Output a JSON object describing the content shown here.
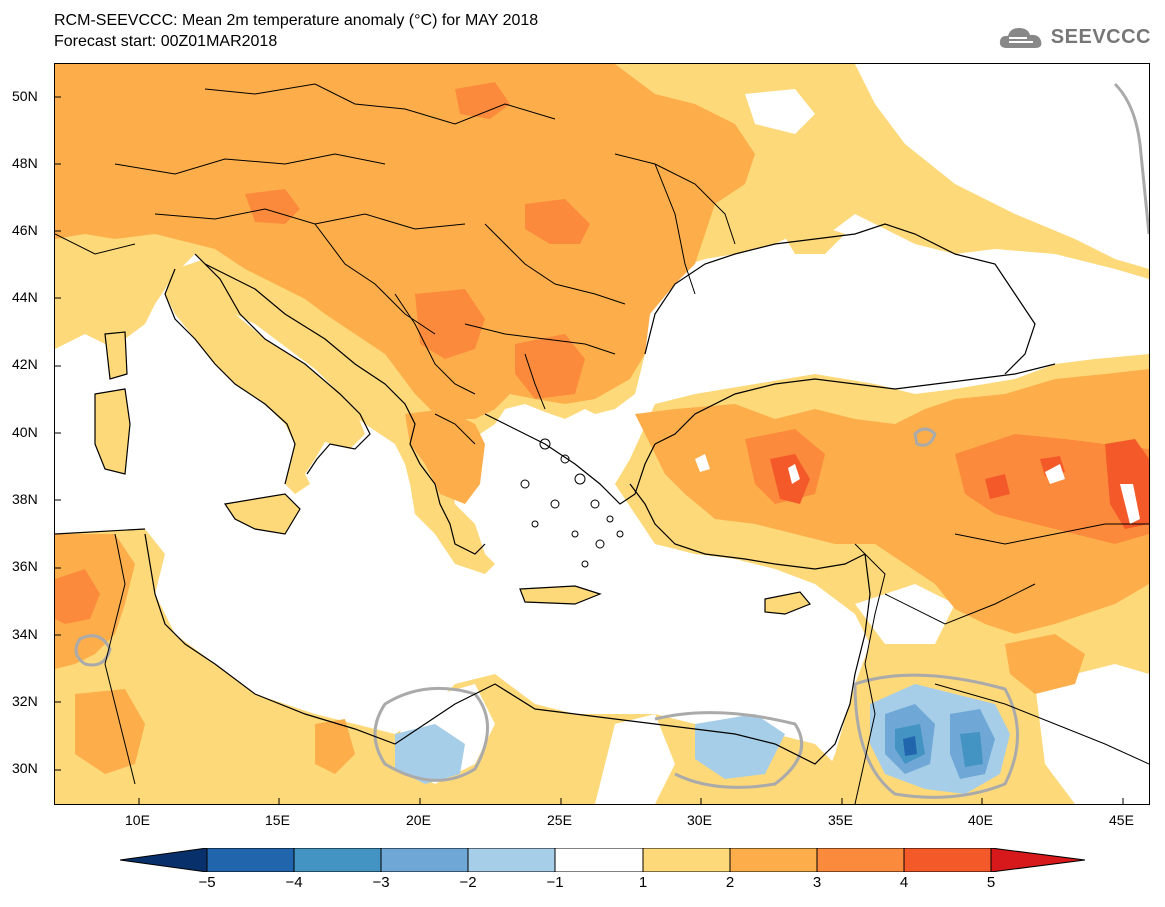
{
  "header": {
    "title": "RCM-SEEVCCC: Mean 2m temperature anomaly (°C) for MAY 2018",
    "subtitle": "Forecast start: 00Z01MAR2018",
    "logo_text": "SEEVCCC",
    "logo_icon": "cloud-icon"
  },
  "map": {
    "lat_labels": [
      "50N",
      "48N",
      "46N",
      "44N",
      "42N",
      "40N",
      "38N",
      "36N",
      "34N",
      "32N",
      "30N"
    ],
    "lon_labels": [
      "10E",
      "15E",
      "20E",
      "25E",
      "30E",
      "35E",
      "40E",
      "45E"
    ]
  },
  "colorbar": {
    "labels": [
      "−5",
      "−4",
      "−3",
      "−2",
      "−1",
      "1",
      "2",
      "3",
      "4",
      "5"
    ],
    "colors": [
      "#08306b",
      "#2166ac",
      "#4393c3",
      "#6fa8d6",
      "#a6cee8",
      "#ffffff",
      "#fdd97a",
      "#fdae4b",
      "#fc8a3c",
      "#f4592a",
      "#d7191c"
    ]
  },
  "colors": {
    "sea": "#ffffff",
    "border": "#000000",
    "zero_contour": "#aaaaaa"
  }
}
